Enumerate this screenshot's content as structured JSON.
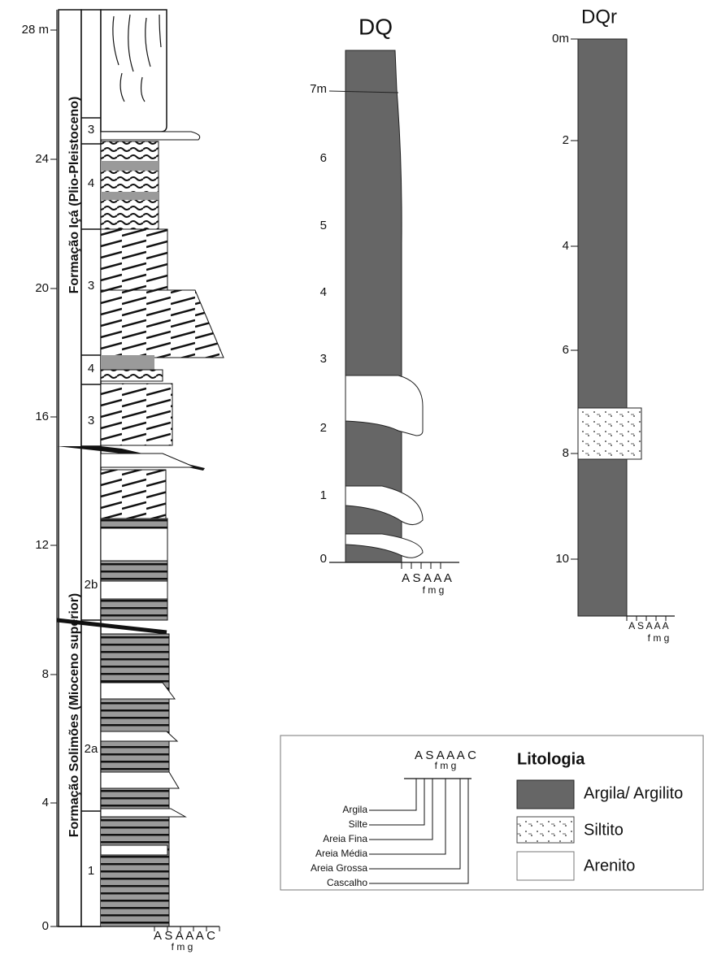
{
  "main_column": {
    "depth_labels": [
      "28 m",
      "24",
      "20",
      "16",
      "12",
      "8",
      "4",
      "0"
    ],
    "formations": [
      "Formação Içá (Plio-Pleistoceno)",
      "Formação Solimões (Mioceno superior)"
    ],
    "units": [
      "3",
      "4",
      "3",
      "4",
      "3",
      "2b",
      "2a",
      "1"
    ],
    "scale": {
      "letters": "A S A A A C",
      "sub": "f m g"
    }
  },
  "dq": {
    "title": "DQ",
    "depth_labels": [
      "7m",
      "6",
      "5",
      "4",
      "3",
      "2",
      "1",
      "0"
    ],
    "scale": {
      "letters": "A S A A A",
      "sub": "f m g"
    }
  },
  "dqr": {
    "title": "DQr",
    "depth_labels": [
      "0m",
      "2",
      "4",
      "6",
      "8",
      "10"
    ],
    "scale": {
      "letters": "A S A A A",
      "sub": "f m g"
    }
  },
  "legend": {
    "scale": {
      "letters": "A S A A A C",
      "sub": "f m g"
    },
    "grain_sizes": [
      "Argila",
      "Silte",
      "Areia Fina",
      "Areia Média",
      "Areia Grossa",
      "Cascalho"
    ],
    "title": "Litologia",
    "lithologies": [
      "Argila/ Argilito",
      "Siltito",
      "Arenito"
    ]
  }
}
